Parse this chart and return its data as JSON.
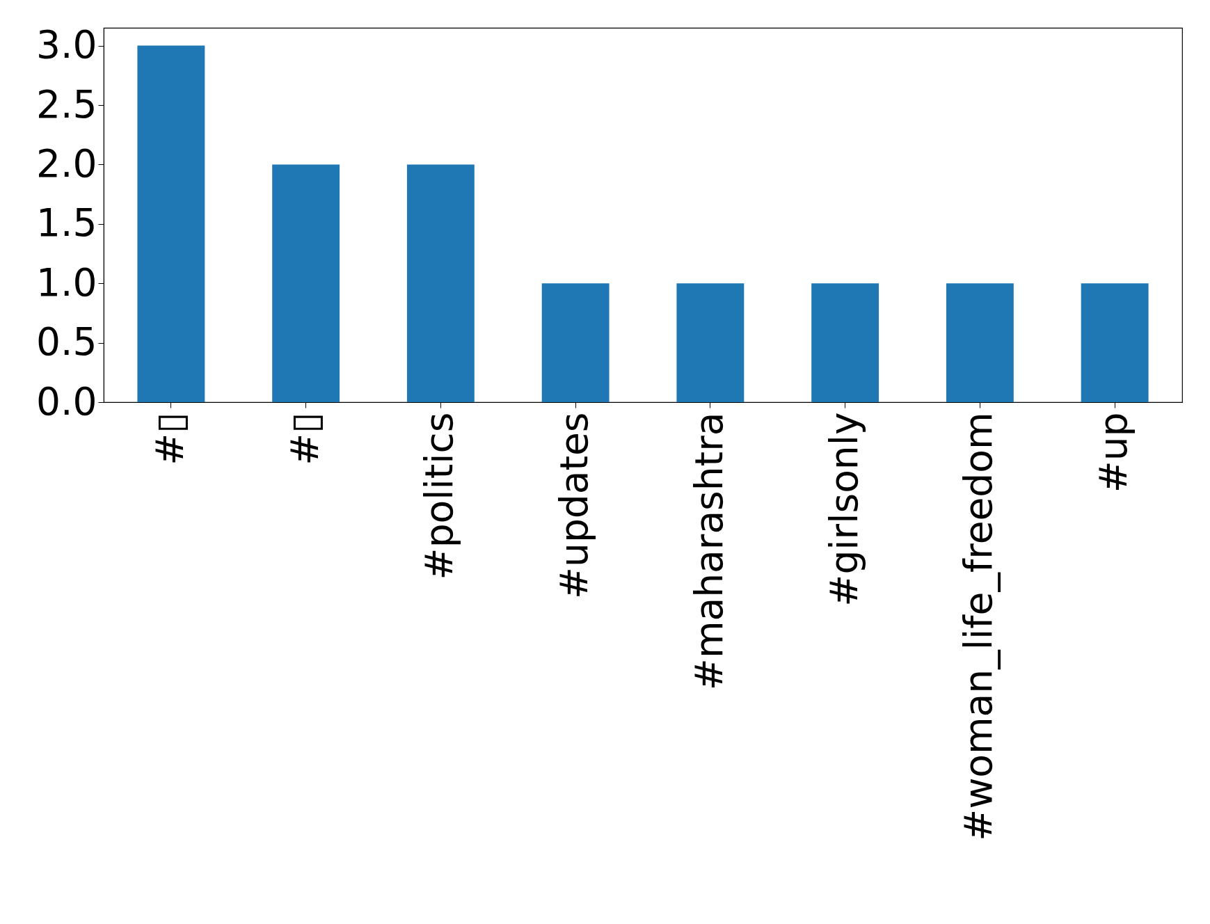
{
  "chart_data": {
    "type": "bar",
    "categories": [
      "#▯",
      "#▯",
      "#politics",
      "#updates",
      "#maharashtra",
      "#girlsonly",
      "#woman_life_freedom",
      "#up"
    ],
    "values": [
      3,
      2,
      2,
      1,
      1,
      1,
      1,
      1
    ],
    "color": "#1f77b4",
    "ylim": [
      0,
      3.15
    ],
    "yticks": [
      {
        "value": 0,
        "label": "0.0"
      },
      0.5,
      {
        "value": 1,
        "label": "1.0"
      },
      1.5,
      {
        "value": 2,
        "label": "2.0"
      },
      2.5,
      {
        "value": 3,
        "label": "3.0"
      }
    ],
    "grid": false
  }
}
